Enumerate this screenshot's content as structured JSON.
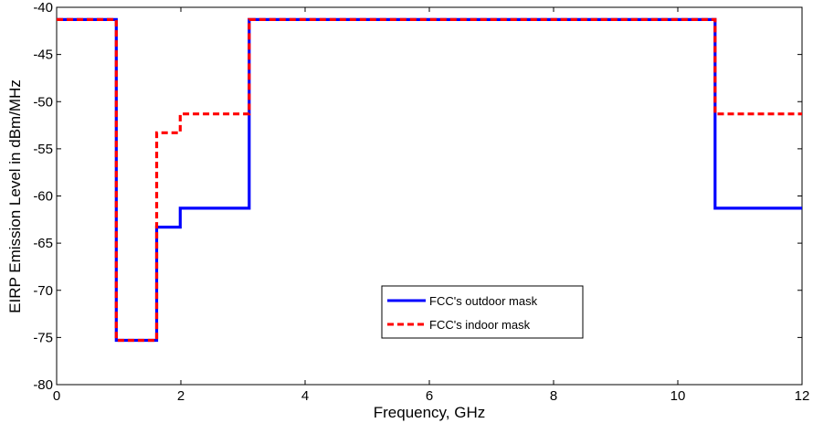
{
  "chart_data": {
    "type": "line",
    "title": "",
    "xlabel": "Frequency, GHz",
    "ylabel": "EIRP  Emission Level in dBm/MHz",
    "xlim": [
      0,
      12
    ],
    "ylim": [
      -80,
      -40
    ],
    "xticks": [
      "0",
      "2",
      "4",
      "6",
      "8",
      "10",
      "12"
    ],
    "yticks": [
      "-40",
      "-45",
      "-50",
      "-55",
      "-60",
      "-65",
      "-70",
      "-75",
      "-80"
    ],
    "grid": false,
    "legend_position": "bottom-center",
    "series": [
      {
        "name": "FCC's outdoor mask",
        "color": "#0000ff",
        "style": "solid",
        "x": [
          0,
          0.96,
          0.96,
          1.61,
          1.61,
          1.99,
          1.99,
          3.1,
          3.1,
          10.6,
          10.6,
          12
        ],
        "y": [
          -41.3,
          -41.3,
          -75.3,
          -75.3,
          -63.3,
          -63.3,
          -61.3,
          -61.3,
          -41.3,
          -41.3,
          -61.3,
          -61.3
        ]
      },
      {
        "name": "FCC's indoor mask",
        "color": "#ff0000",
        "style": "dashed",
        "x": [
          0,
          0.96,
          0.96,
          1.61,
          1.61,
          1.99,
          1.99,
          3.1,
          3.1,
          10.6,
          10.6,
          12
        ],
        "y": [
          -41.3,
          -41.3,
          -75.3,
          -75.3,
          -53.3,
          -53.3,
          -51.3,
          -51.3,
          -41.3,
          -41.3,
          -51.3,
          -51.3
        ]
      }
    ]
  }
}
